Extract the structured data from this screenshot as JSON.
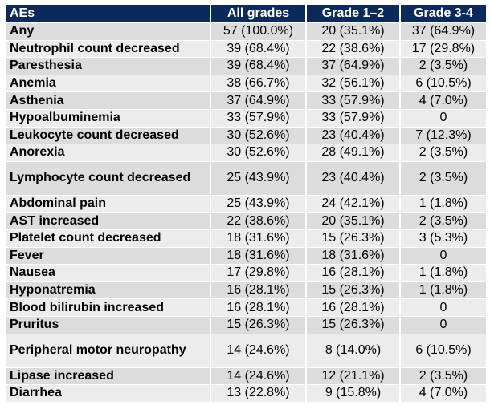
{
  "table": {
    "headers": [
      "AEs",
      "All grades",
      "Grade 1–2",
      "Grade 3-4"
    ],
    "rows": [
      {
        "ae": "Any",
        "all": "57 (100.0%)",
        "g12": "20 (35.1%)",
        "g34": "37 (64.9%)"
      },
      {
        "ae": "Neutrophil count decreased",
        "all": "39 (68.4%)",
        "g12": "22 (38.6%)",
        "g34": "17 (29.8%)"
      },
      {
        "ae": "Paresthesia",
        "all": "39 (68.4%)",
        "g12": "37 (64.9%)",
        "g34": "2 (3.5%)"
      },
      {
        "ae": "Anemia",
        "all": "38 (66.7%)",
        "g12": "32 (56.1%)",
        "g34": "6 (10.5%)"
      },
      {
        "ae": "Asthenia",
        "all": "37 (64.9%)",
        "g12": "33 (57.9%)",
        "g34": "4 (7.0%)"
      },
      {
        "ae": "Hypoalbuminemia",
        "all": "33 (57.9%)",
        "g12": "33 (57.9%)",
        "g34": "0"
      },
      {
        "ae": "Leukocyte count decreased",
        "all": "30 (52.6%)",
        "g12": "23 (40.4%)",
        "g34": "7 (12.3%)"
      },
      {
        "ae": "Anorexia",
        "all": "30 (52.6%)",
        "g12": "28 (49.1%)",
        "g34": "2 (3.5%)"
      },
      {
        "ae": "Lymphocyte count decreased",
        "all": "25 (43.9%)",
        "g12": "23 (40.4%)",
        "g34": "2 (3.5%)"
      },
      {
        "ae": "Abdominal pain",
        "all": "25 (43.9%)",
        "g12": "24 (42.1%)",
        "g34": "1 (1.8%)"
      },
      {
        "ae": "AST increased",
        "all": "22 (38.6%)",
        "g12": "20 (35.1%)",
        "g34": "2 (3.5%)"
      },
      {
        "ae": "Platelet count decreased",
        "all": "18 (31.6%)",
        "g12": "15 (26.3%)",
        "g34": "3 (5.3%)"
      },
      {
        "ae": "Fever",
        "all": "18 (31.6%)",
        "g12": "18 (31.6%)",
        "g34": "0"
      },
      {
        "ae": "Nausea",
        "all": "17 (29.8%)",
        "g12": "16 (28.1%)",
        "g34": "1 (1.8%)"
      },
      {
        "ae": "Hyponatremia",
        "all": "16 (28.1%)",
        "g12": "15 (26.3%)",
        "g34": "1 (1.8%)"
      },
      {
        "ae": "Blood bilirubin increased",
        "all": "16 (28.1%)",
        "g12": "16 (28.1%)",
        "g34": "0"
      },
      {
        "ae": "Pruritus",
        "all": "15 (26.3%)",
        "g12": "15 (26.3%)",
        "g34": "0"
      },
      {
        "ae": "Peripheral motor neuropathy",
        "all": "14 (24.6%)",
        "g12": "8 (14.0%)",
        "g34": "6 (10.5%)"
      },
      {
        "ae": "Lipase increased",
        "all": "14 (24.6%)",
        "g12": "12 (21.1%)",
        "g34": "2 (3.5%)"
      },
      {
        "ae": "Diarrhea",
        "all": "13 (22.8%)",
        "g12": "9 (15.8%)",
        "g34": "4 (7.0%)"
      }
    ]
  },
  "colors": {
    "header_bg": "#0b2a5b",
    "header_text": "#ffffff",
    "row_shade_a": "#dcdcdc",
    "row_shade_b": "#ececec"
  }
}
